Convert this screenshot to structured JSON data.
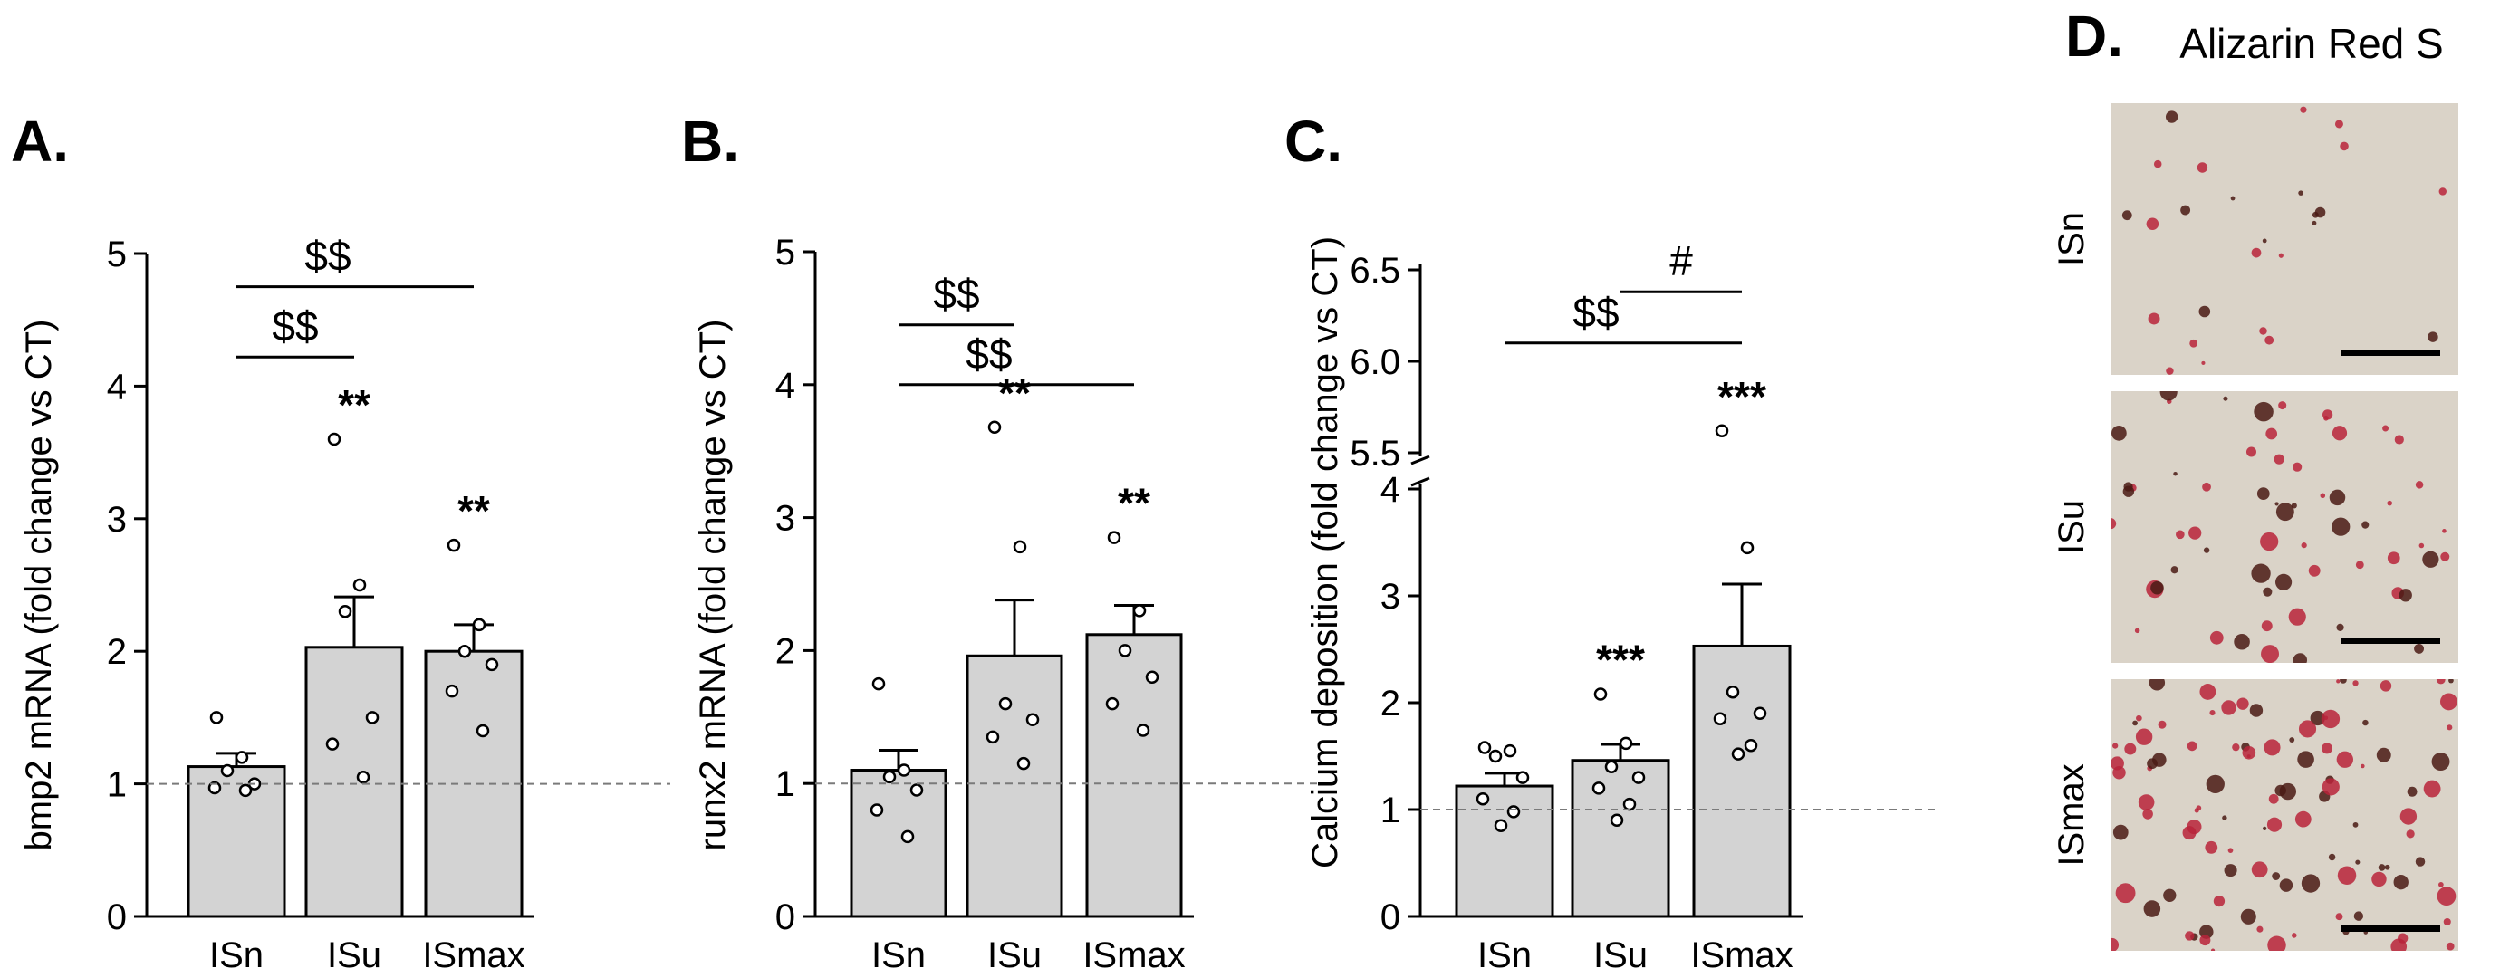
{
  "chart_data": [
    {
      "type": "bar",
      "panel": "A.",
      "ylabel": "bmp2 mRNA  (fold change vs CT)",
      "categories": [
        "ISn",
        "ISu",
        "ISmax"
      ],
      "values": [
        1.13,
        2.03,
        2.0
      ],
      "sem": [
        0.1,
        0.38,
        0.2
      ],
      "points": [
        [
          1.5,
          1.2,
          1.1,
          1.0,
          0.97,
          0.95
        ],
        [
          3.6,
          2.5,
          2.3,
          1.5,
          1.3,
          1.05
        ],
        [
          2.8,
          2.2,
          2.0,
          1.9,
          1.7,
          1.4
        ]
      ],
      "significance": [
        "",
        "**",
        "**"
      ],
      "brackets": [
        {
          "from": 0,
          "to": 1,
          "label": "$$",
          "y": 4.22
        },
        {
          "from": 0,
          "to": 2,
          "label": "$$",
          "y": 4.75
        }
      ],
      "ylim": [
        0,
        5
      ],
      "yticks": [
        0,
        1,
        2,
        3,
        4,
        5
      ],
      "reference_line": 1
    },
    {
      "type": "bar",
      "panel": "B.",
      "ylabel": "runx2 mRNA  (fold change vs CT)",
      "categories": [
        "ISn",
        "ISu",
        "ISmax"
      ],
      "values": [
        1.1,
        1.96,
        2.12
      ],
      "sem": [
        0.15,
        0.42,
        0.22
      ],
      "points": [
        [
          1.75,
          1.1,
          1.05,
          0.95,
          0.8,
          0.6
        ],
        [
          3.68,
          2.78,
          1.6,
          1.48,
          1.35,
          1.15
        ],
        [
          2.85,
          2.3,
          2.0,
          1.8,
          1.6,
          1.4
        ]
      ],
      "significance": [
        "",
        "**",
        "**"
      ],
      "brackets": [
        {
          "from": 0,
          "to": 1,
          "label": "$$",
          "y": 4.45
        },
        {
          "from": 0,
          "to": 2,
          "label": "$$",
          "y": 4.0
        }
      ],
      "ylim": [
        0,
        5
      ],
      "yticks": [
        0,
        1,
        2,
        3,
        4,
        5
      ],
      "reference_line": 1
    },
    {
      "type": "bar",
      "panel": "C.",
      "ylabel": "Calcium deposition  (fold change vs CT)",
      "categories": [
        "ISn",
        "ISu",
        "ISmax"
      ],
      "values": [
        1.22,
        1.46,
        2.53
      ],
      "sem": [
        0.12,
        0.15,
        0.58
      ],
      "points": [
        [
          1.58,
          1.55,
          1.5,
          1.3,
          1.1,
          0.98,
          0.85
        ],
        [
          2.08,
          1.62,
          1.4,
          1.3,
          1.2,
          1.05,
          0.9
        ],
        [
          5.62,
          3.45,
          2.1,
          1.9,
          1.85,
          1.6,
          1.52
        ]
      ],
      "significance": [
        "",
        "***",
        "***"
      ],
      "brackets": [
        {
          "from": 0,
          "to": 2,
          "label": "$$",
          "y": 6.1
        },
        {
          "from": 1,
          "to": 2,
          "label": "#",
          "y": 6.38
        }
      ],
      "axis_break": [
        4,
        5.5
      ],
      "ylim": [
        0,
        6.6
      ],
      "yticks": [
        0,
        1,
        2,
        3,
        4,
        5.5,
        6.0,
        6.5
      ],
      "ytick_labels": [
        "0",
        "1",
        "2",
        "3",
        "4",
        "5.5",
        "6.0",
        "6.5"
      ],
      "reference_line": 1
    }
  ],
  "panel_d": {
    "letter": "D.",
    "title": "Alizarin Red S",
    "images": [
      {
        "label": "ISn",
        "stain_density": "low"
      },
      {
        "label": "ISu",
        "stain_density": "medium"
      },
      {
        "label": "ISmax",
        "stain_density": "high"
      }
    ],
    "colors": {
      "background": "#dad3c8",
      "stain": "#b8233a",
      "dark": "#4a1a14",
      "scale_bar": "#000000"
    }
  },
  "colors": {
    "bar_fill": "#d3d3d3",
    "bar_stroke": "#000000",
    "reference_line": "#7a7a7a"
  }
}
